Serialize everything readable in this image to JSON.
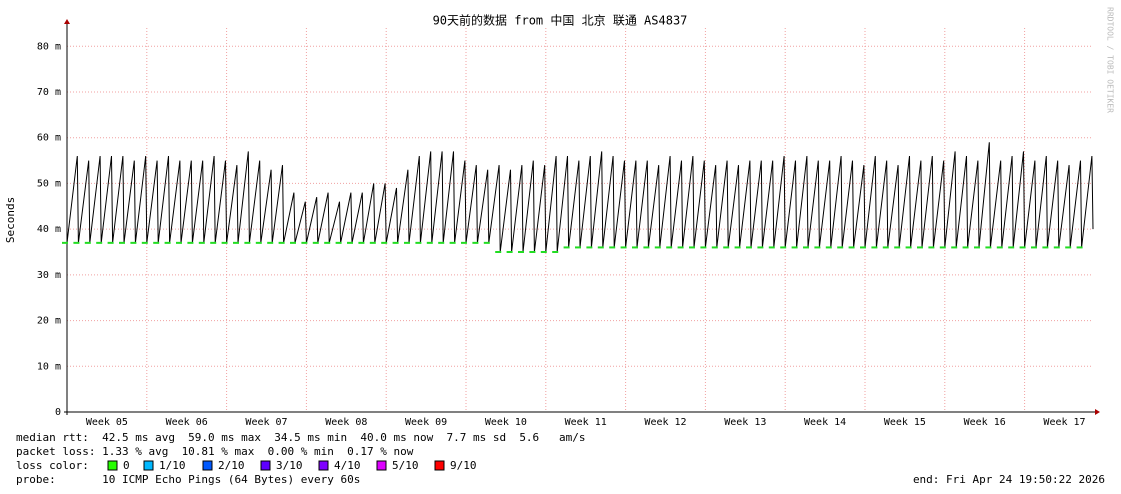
{
  "chart_data": {
    "type": "line",
    "title": "90天前的数据 from  中国 北京 联通 AS4837",
    "y_label": "Seconds",
    "watermark": "RRDTOOL / TOBI OETIKER",
    "xlim": [
      0,
      90
    ],
    "xticks": [
      {
        "value": 3.5,
        "label": "Week 05"
      },
      {
        "value": 10.5,
        "label": "Week 06"
      },
      {
        "value": 17.5,
        "label": "Week 07"
      },
      {
        "value": 24.5,
        "label": "Week 08"
      },
      {
        "value": 31.5,
        "label": "Week 09"
      },
      {
        "value": 38.5,
        "label": "Week 10"
      },
      {
        "value": 45.5,
        "label": "Week 11"
      },
      {
        "value": 52.5,
        "label": "Week 12"
      },
      {
        "value": 59.5,
        "label": "Week 13"
      },
      {
        "value": 66.5,
        "label": "Week 14"
      },
      {
        "value": 73.5,
        "label": "Week 15"
      },
      {
        "value": 80.5,
        "label": "Week 16"
      },
      {
        "value": 87.5,
        "label": "Week 17"
      }
    ],
    "xgrid": [
      7,
      14,
      21,
      28,
      35,
      42,
      49,
      56,
      63,
      70,
      77,
      84
    ],
    "ylim": [
      0,
      84
    ],
    "yticks": [
      0,
      {
        "value": 10,
        "label": "10 m"
      },
      {
        "value": 20,
        "label": "20 m"
      },
      {
        "value": 30,
        "label": "30 m"
      },
      {
        "value": 40,
        "label": "40 m"
      },
      {
        "value": 50,
        "label": "50 m"
      },
      {
        "value": 60,
        "label": "60 m"
      },
      {
        "value": 70,
        "label": "70 m"
      },
      {
        "value": 80,
        "label": "80 m"
      }
    ],
    "grid": true,
    "x": [
      0,
      0.9,
      1,
      1.9,
      2,
      2.9,
      3,
      3.9,
      4,
      4.9,
      5,
      5.9,
      6,
      6.9,
      7,
      7.9,
      8,
      8.9,
      9,
      9.9,
      10,
      10.9,
      11,
      11.9,
      12,
      12.9,
      13,
      13.9,
      14,
      14.9,
      15,
      15.9,
      16,
      16.9,
      17,
      17.9,
      18,
      18.9,
      19,
      19.9,
      20,
      20.9,
      21,
      21.9,
      22,
      22.9,
      23,
      23.9,
      24,
      24.9,
      25,
      25.9,
      26,
      26.9,
      27,
      27.9,
      28,
      28.9,
      29,
      29.9,
      30,
      30.9,
      31,
      31.9,
      32,
      32.9,
      33,
      33.9,
      34,
      34.9,
      35,
      35.9,
      36,
      36.9,
      37,
      37.9,
      38,
      38.9,
      39,
      39.9,
      40,
      40.9,
      41,
      41.9,
      42,
      42.9,
      43,
      43.9,
      44,
      44.9,
      45,
      45.9,
      46,
      46.9,
      47,
      47.9,
      48,
      48.9,
      49,
      49.9,
      50,
      50.9,
      51,
      51.9,
      52,
      52.9,
      53,
      53.9,
      54,
      54.9,
      55,
      55.9,
      56,
      56.9,
      57,
      57.9,
      58,
      58.9,
      59,
      59.9,
      60,
      60.9,
      61,
      61.9,
      62,
      62.9,
      63,
      63.9,
      64,
      64.9,
      65,
      65.9,
      66,
      66.9,
      67,
      67.9,
      68,
      68.9,
      69,
      69.9,
      70,
      70.9,
      71,
      71.9,
      72,
      72.9,
      73,
      73.9,
      74,
      74.9,
      75,
      75.9,
      76,
      76.9,
      77,
      77.9,
      78,
      78.9,
      79,
      79.9,
      80,
      80.9,
      81,
      81.9,
      82,
      82.9,
      83,
      83.9,
      84,
      84.9,
      85,
      85.9,
      86,
      86.9,
      87,
      87.9,
      88,
      88.9,
      89,
      89.9,
      90
    ],
    "series": [
      {
        "name": "median rtt",
        "color": "#000000",
        "low_color": "#22dd22",
        "values": [
          37,
          56,
          37,
          55,
          37,
          56,
          37,
          56,
          37,
          56,
          37,
          55,
          37,
          56,
          37,
          55,
          37,
          56,
          37,
          55,
          37,
          55,
          37,
          55,
          37,
          56,
          37,
          55,
          37,
          54,
          37,
          57,
          37,
          55,
          37,
          53,
          37,
          54,
          37,
          48,
          37,
          46,
          37,
          47,
          37,
          48,
          37,
          46,
          37,
          48,
          37,
          48,
          37,
          50,
          37,
          50,
          37,
          49,
          37,
          53,
          37,
          56,
          37,
          57,
          37,
          57,
          37,
          57,
          37,
          55,
          37,
          54,
          37,
          53,
          37,
          54,
          35,
          53,
          35,
          54,
          35,
          55,
          35,
          54,
          35,
          56,
          35,
          56,
          36,
          55,
          36,
          56,
          36,
          57,
          36,
          56,
          36,
          55,
          36,
          55,
          36,
          55,
          36,
          54,
          36,
          56,
          36,
          55,
          36,
          56,
          36,
          55,
          36,
          54,
          36,
          55,
          36,
          54,
          36,
          55,
          36,
          55,
          36,
          55,
          36,
          56,
          36,
          55,
          36,
          56,
          36,
          55,
          36,
          55,
          36,
          56,
          36,
          55,
          36,
          54,
          36,
          56,
          36,
          55,
          36,
          54,
          36,
          56,
          36,
          55,
          36,
          56,
          36,
          55,
          36,
          57,
          36,
          56,
          36,
          55,
          36,
          59,
          36,
          55,
          36,
          56,
          36,
          57,
          36,
          55,
          36,
          56,
          36,
          55,
          36,
          54,
          36,
          55,
          36,
          56,
          40
        ]
      }
    ],
    "legend_lines": [
      "median rtt:  42.5 ms avg  59.0 ms max  34.5 ms min  40.0 ms now  7.7 ms sd  5.6   am/s",
      "packet loss: 1.33 % avg  10.81 % max  0.00 % min  0.17 % now"
    ],
    "loss_color_label": "loss color:",
    "loss_colors": [
      {
        "label": "0",
        "color": "#26ff00"
      },
      {
        "label": "1/10",
        "color": "#00b8ff"
      },
      {
        "label": "2/10",
        "color": "#0059ff"
      },
      {
        "label": "3/10",
        "color": "#5e00ff"
      },
      {
        "label": "4/10",
        "color": "#7e00ff"
      },
      {
        "label": "5/10",
        "color": "#dd00ff"
      },
      {
        "label": "9/10",
        "color": "#ff0000"
      }
    ],
    "probe": "probe:       10 ICMP Echo Pings (64 Bytes) every 60s",
    "end": "end: Fri Apr 24 19:50:22 2026"
  }
}
